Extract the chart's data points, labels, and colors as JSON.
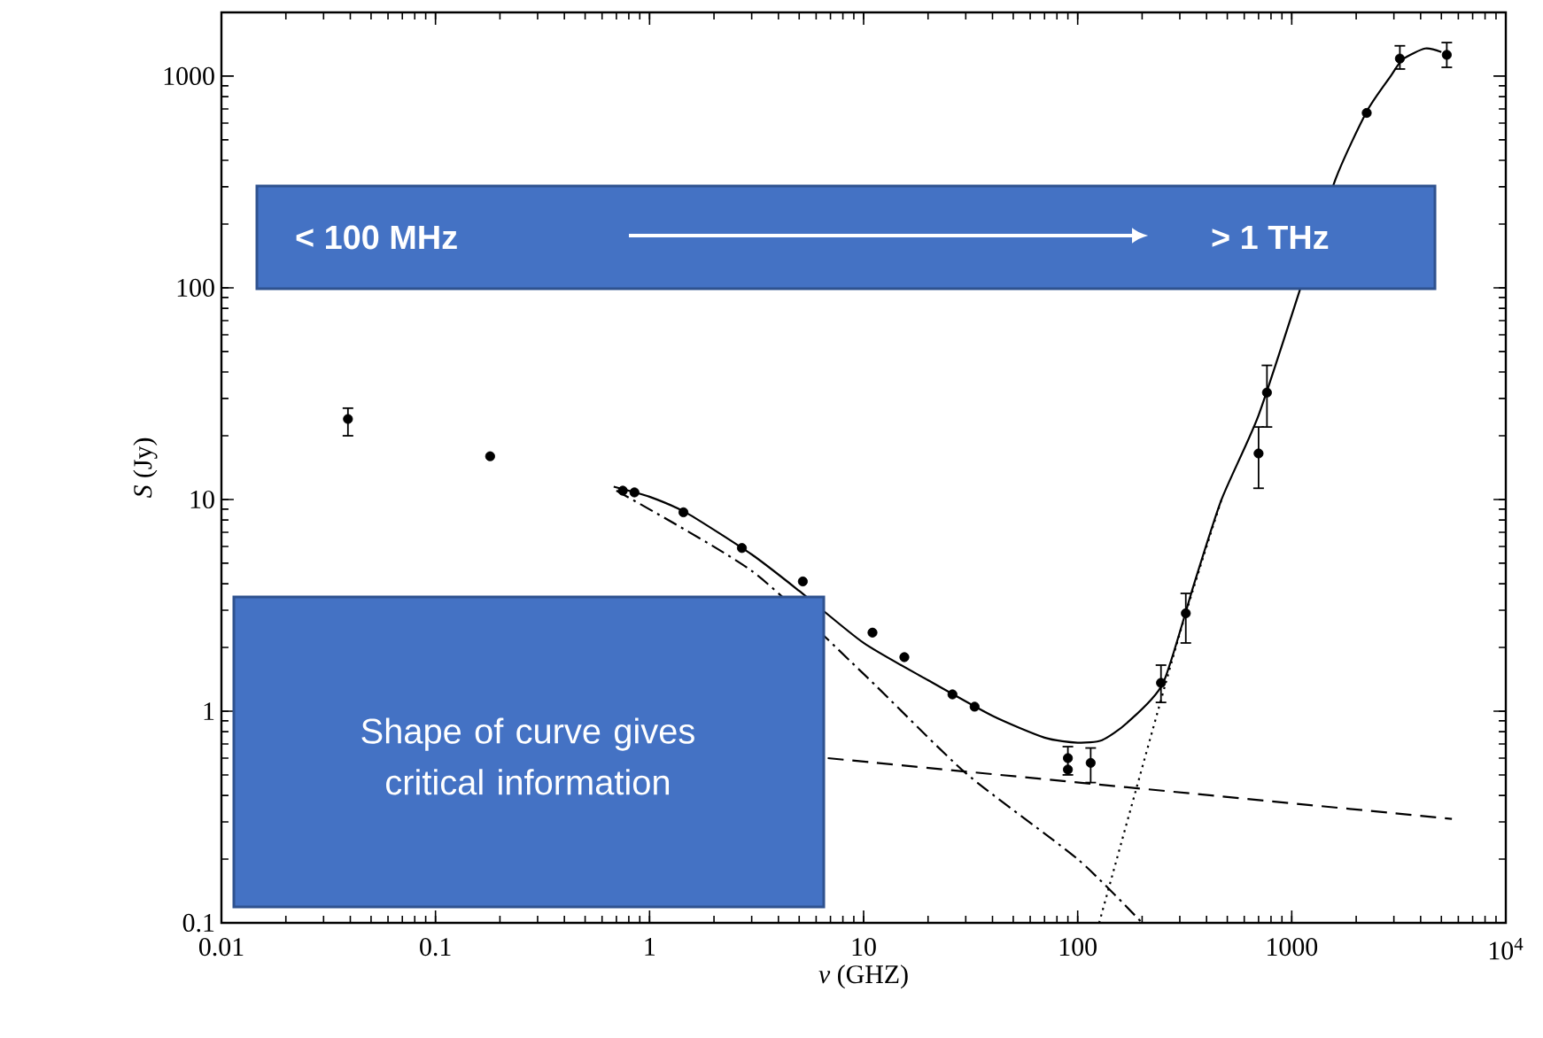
{
  "chart_data": {
    "type": "line",
    "log": "xy",
    "grid": false,
    "xlabel": "*ν* (GHZ)",
    "ylabel": "*S* (Jy)",
    "xlim": [
      0.01,
      10000
    ],
    "ylim": [
      0.1,
      2000
    ],
    "xticks": [
      0.01,
      0.1,
      1,
      10,
      100,
      1000,
      {
        "value": 10000,
        "label": "10$^{4}$"
      }
    ],
    "yticks": [
      0.1,
      1,
      10,
      100,
      1000
    ],
    "annotations": [
      "< 100 MHz",
      "> 1 THz",
      "Shape of curve gives critical information"
    ],
    "series": [
      {
        "type": "scatter",
        "color": "#000000",
        "marker": "circle",
        "x": [
          0.039,
          0.18,
          0.75,
          0.85,
          1.44,
          2.7,
          5.2,
          11,
          15.5,
          26,
          33,
          90,
          90,
          115,
          245,
          320,
          700,
          766,
          2240,
          3200,
          5300
        ],
        "values": [
          24,
          16,
          11,
          10.8,
          8.7,
          5.9,
          4.1,
          2.35,
          1.8,
          1.2,
          1.05,
          0.6,
          0.53,
          0.57,
          1.36,
          2.9,
          16.5,
          32,
          670,
          1210,
          1260
        ],
        "errors": [
          [
            20,
            27
          ],
          null,
          null,
          null,
          null,
          null,
          null,
          null,
          null,
          null,
          null,
          [
            0.5,
            0.68
          ],
          null,
          [
            0.46,
            0.67
          ],
          [
            1.1,
            1.65
          ],
          [
            2.1,
            3.6
          ],
          [
            11.3,
            22
          ],
          [
            22,
            43
          ],
          null,
          [
            1080,
            1390
          ],
          [
            1100,
            1440
          ]
        ]
      },
      {
        "type": "line",
        "color": "#000000",
        "line_style": "solid",
        "x": [
          0.68,
          1,
          1.5,
          3,
          5,
          10,
          20,
          40,
          70,
          100,
          130,
          170,
          250,
          350,
          470,
          700,
          1100,
          1600,
          2240,
          2900,
          3300,
          4200,
          5000
        ],
        "values": [
          11.5,
          10.3,
          8.6,
          5.5,
          3.7,
          2.1,
          1.4,
          0.95,
          0.75,
          0.71,
          0.73,
          0.88,
          1.35,
          4,
          10,
          25,
          100,
          325,
          680,
          1000,
          1200,
          1350,
          1300
        ]
      },
      {
        "type": "line",
        "color": "#000000",
        "line_style": "dashdot",
        "x": [
          0.7,
          3,
          10,
          30,
          100,
          200
        ],
        "values": [
          11,
          4.6,
          1.5,
          0.51,
          0.2,
          0.1
        ]
      },
      {
        "type": "line",
        "color": "#000000",
        "line_style": "dashed",
        "x": [
          6.8,
          5600
        ],
        "values": [
          0.6,
          0.31
        ]
      },
      {
        "type": "line",
        "color": "#000000",
        "line_style": "dotted",
        "x": [
          126,
          295,
          470
        ],
        "values": [
          0.1,
          2.2,
          10
        ]
      }
    ]
  }
}
